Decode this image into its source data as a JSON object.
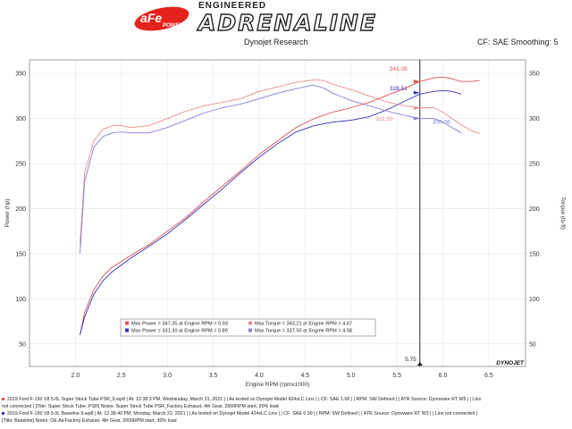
{
  "header": {
    "logo_text": "aFe POWER",
    "brand_small": "ENGINEERED",
    "brand_big": "ADRENALINE",
    "subtitle": "Dynojet Research",
    "cf_text": "CF: SAE Smoothing: 5"
  },
  "chart_data": {
    "type": "line",
    "title": "Dynojet Research",
    "xlabel": "Engine RPM (rpmx1000)",
    "ylabel_left": "Power (hp)",
    "ylabel_right": "Torque (lb-ft)",
    "xlim": [
      1.5,
      6.9
    ],
    "ylim": [
      25,
      365
    ],
    "x_ticks": [
      2.0,
      2.5,
      3.0,
      3.5,
      4.0,
      4.5,
      5.0,
      5.5,
      6.0,
      6.5
    ],
    "x_tick_labels": [
      "2.0",
      "2.5",
      "3.0",
      "3.5",
      "4.0",
      "4.5",
      "5.0",
      "5.5",
      "6.0",
      "6.5"
    ],
    "y_ticks": [
      50,
      100,
      150,
      200,
      250,
      300,
      350
    ],
    "y_tick_labels": [
      "50",
      "100",
      "150",
      "200",
      "250",
      "300",
      "350"
    ],
    "right_ticks": [
      50,
      100,
      150,
      200,
      250,
      300,
      350
    ],
    "right_tick_labels": [
      "50",
      "100",
      "150",
      "200",
      "250",
      "300",
      "350"
    ],
    "grid": true,
    "cursor_x": 5.75,
    "cursor_label": "5.75",
    "brand_mark": "DYNOJET",
    "series": [
      {
        "color": "#e05050",
        "x": [
          2.05,
          2.1,
          2.2,
          2.3,
          2.4,
          2.6,
          2.8,
          3.0,
          3.2,
          3.4,
          3.6,
          3.8,
          4.0,
          4.2,
          4.4,
          4.6,
          4.8,
          5.0,
          5.2,
          5.4,
          5.6,
          5.75,
          5.9,
          6.0,
          6.1,
          6.2,
          6.3,
          6.4
        ],
        "y": [
          60,
          85,
          110,
          125,
          135,
          148,
          160,
          175,
          190,
          208,
          225,
          242,
          260,
          275,
          290,
          300,
          307,
          312,
          318,
          326,
          334,
          341,
          345,
          346,
          344,
          341,
          341,
          342
        ]
      },
      {
        "color": "#3030c0",
        "x": [
          2.05,
          2.1,
          2.2,
          2.3,
          2.4,
          2.6,
          2.8,
          3.0,
          3.2,
          3.4,
          3.6,
          3.8,
          4.0,
          4.2,
          4.4,
          4.6,
          4.8,
          5.0,
          5.2,
          5.4,
          5.6,
          5.75,
          5.9,
          6.0,
          6.1,
          6.2
        ],
        "y": [
          60,
          80,
          105,
          120,
          130,
          145,
          158,
          172,
          188,
          205,
          222,
          240,
          257,
          272,
          285,
          292,
          296,
          298,
          302,
          310,
          320,
          327,
          330,
          331,
          330,
          327
        ]
      },
      {
        "color": "#f08a8a",
        "x": [
          2.05,
          2.1,
          2.2,
          2.3,
          2.4,
          2.5,
          2.6,
          2.8,
          3.0,
          3.2,
          3.4,
          3.6,
          3.8,
          4.0,
          4.2,
          4.4,
          4.6,
          4.7,
          4.8,
          5.0,
          5.2,
          5.4,
          5.6,
          5.75,
          5.9,
          6.0,
          6.1,
          6.2,
          6.3,
          6.4
        ],
        "y": [
          160,
          240,
          275,
          288,
          292,
          292,
          290,
          292,
          300,
          308,
          314,
          318,
          322,
          330,
          335,
          340,
          343,
          342,
          338,
          332,
          325,
          318,
          314,
          312,
          312,
          307,
          300,
          293,
          287,
          283
        ]
      },
      {
        "color": "#8080e0",
        "x": [
          2.05,
          2.1,
          2.2,
          2.3,
          2.4,
          2.5,
          2.6,
          2.8,
          3.0,
          3.2,
          3.4,
          3.6,
          3.8,
          4.0,
          4.2,
          4.4,
          4.58,
          4.7,
          4.8,
          5.0,
          5.2,
          5.4,
          5.6,
          5.75,
          5.9,
          6.0,
          6.1,
          6.2
        ],
        "y": [
          150,
          230,
          268,
          280,
          284,
          285,
          284,
          284,
          290,
          298,
          306,
          312,
          316,
          322,
          328,
          333,
          337,
          334,
          328,
          320,
          314,
          308,
          303,
          300,
          300,
          296,
          290,
          284
        ]
      }
    ],
    "markers": [
      {
        "label": "341.08",
        "color": "#e05050",
        "value": 341.08
      },
      {
        "label": "328.51",
        "color": "#3030c0",
        "value": 328.51
      },
      {
        "label": "300.06",
        "color": "#8080e0",
        "value": 300.06
      },
      {
        "label": "311.55",
        "color": "#f08a8a",
        "value": 311.55
      }
    ],
    "legend": [
      {
        "color": "#e05050",
        "text": "Max Power = 347.35 at Engine RPM = 5.93"
      },
      {
        "color": "#f08a8a",
        "text": "Max Torque = 343.21 at Engine RPM = 4.67"
      },
      {
        "color": "#3030c0",
        "text": "Max Power = 331.30 at Engine RPM = 5.89"
      },
      {
        "color": "#8080e0",
        "text": "Max Torque = 337.55 at Engine RPM = 4.58"
      }
    ]
  },
  "footer": {
    "lines": [
      {
        "color": "#e05050",
        "text": "2019 Ford F-150 V8 5.0L Super Stock Tube PSR_6.wp8 | At: 12:38:3 PM, Wednesday, March 31, 2021 | | As tested on Dynojet Model 424xLC Linx | | CF: SAE 1.00 | | RPM: SW Defined | | ATR Source: Dynoware RT W5 | | Linx"
      },
      {
        "color": "",
        "text": "not connected | [Title: Super Stock Tube, PSR] Notes: Super Stock Tube PSR_Factory Exhaust, 4th Gear, 2000RPM start, 30% load"
      },
      {
        "color": "#3030c0",
        "text": "2019 Ford F-150 V8 5.0L Baseline 9.wp8 | At: 12:38:40 PM, Monday, March 22, 2021 | | As tested on Dynojet Model 424xLC Linx | | CF: SAE 0.99 | | RPM: SW Defined | | ATR Source: Dynoware RT W3 | | Linx not connected |"
      },
      {
        "color": "",
        "text": "[Title: Baseline] Notes: OE Air,Factory Exhaust, 4th Gear, 2000RPM start, 30% load"
      }
    ]
  }
}
